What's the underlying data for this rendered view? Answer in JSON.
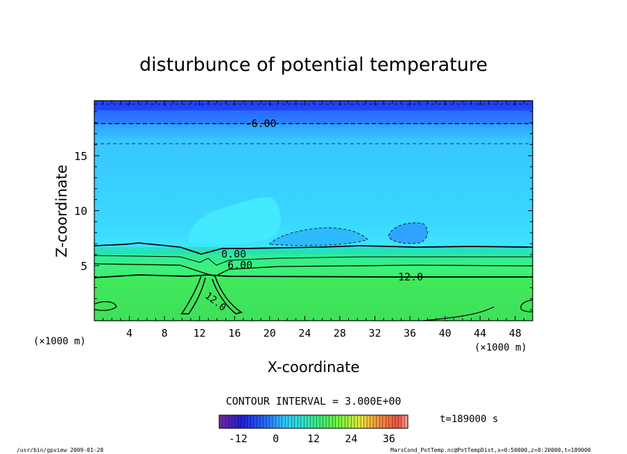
{
  "chart_data": {
    "type": "heatmap",
    "title": "disturbunce of potential temperature",
    "xlabel": "X-coordinate",
    "ylabel": "Z-coordinate",
    "x_unit": "(×1000 m)",
    "z_unit": "(×1000 m)",
    "xlim": [
      0,
      50
    ],
    "ylim": [
      0,
      20
    ],
    "x_ticks": [
      "4",
      "8",
      "12",
      "16",
      "20",
      "24",
      "28",
      "32",
      "36",
      "40",
      "44",
      "48"
    ],
    "y_ticks": [
      "5",
      "10",
      "15"
    ],
    "contour_labels": [
      "-6.00",
      "0.00",
      "6.00",
      "12.0",
      "12.0"
    ],
    "contour_interval_label": "CONTOUR INTERVAL = 3.000E+00",
    "colorbar_ticks": [
      "-12",
      "0",
      "12",
      "24",
      "36"
    ],
    "colorbar_range": [
      -18,
      42
    ],
    "time_label": "t=189000 s"
  },
  "footer": {
    "left": "/usr/bin/gpview   2009-01-28",
    "right": "MarsCond_PotTemp.nc@PotTempDist,x=0:50000,z=0:20000,t=189000"
  },
  "colors": {
    "neg_deep": "#1a2aff",
    "neg_mid": "#2e9bff",
    "neg_light": "#3ad7ff",
    "zero": "#3ee3ff",
    "pos_cyan": "#1ee6c8",
    "pos_green": "#3cf07a",
    "pos_lime": "#3ee05a"
  }
}
